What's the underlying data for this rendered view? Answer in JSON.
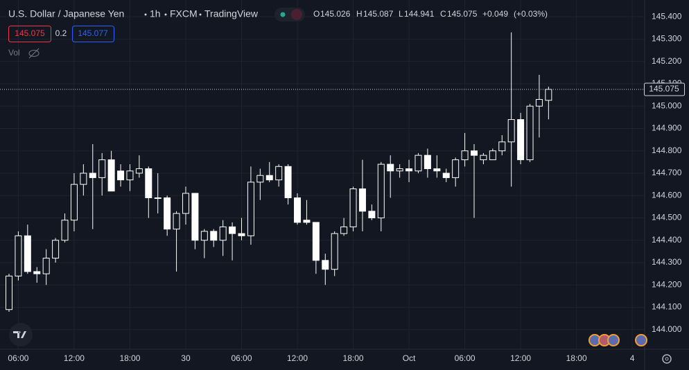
{
  "chart_data": {
    "type": "candlestick",
    "symbol": "U.S. Dollar / Japanese Yen",
    "interval": "1h",
    "source": "FXCM",
    "platform": "TradingView",
    "ohlc_header": {
      "open": 145.026,
      "high": 145.087,
      "low": 144.941,
      "close": 145.075,
      "change": "+0.049",
      "change_pct": "(+0.03%)"
    },
    "bid": 145.075,
    "spread": 0.2,
    "ask": 145.077,
    "volume_label": "Vol",
    "last_price": 145.075,
    "up_color": "#131722",
    "down_color": "#ffffff",
    "outline_color": "#ffffff",
    "bid_color": "#f23645",
    "ask_color": "#2962ff",
    "xticks_labels": [
      "06:00",
      "12:00",
      "18:00",
      "30",
      "06:00",
      "12:00",
      "18:00",
      "Oct",
      "06:00",
      "12:00",
      "18:00",
      "4"
    ],
    "ylim": [
      143.925,
      145.45
    ],
    "yticks": [
      {
        "value": 144.0,
        "label": "144.000"
      },
      {
        "value": 144.1,
        "label": "144.100"
      },
      {
        "value": 144.2,
        "label": "144.200"
      },
      {
        "value": 144.3,
        "label": "144.300"
      },
      {
        "value": 144.4,
        "label": "144.400"
      },
      {
        "value": 144.5,
        "label": "144.500"
      },
      {
        "value": 144.6,
        "label": "144.600"
      },
      {
        "value": 144.7,
        "label": "144.700"
      },
      {
        "value": 144.8,
        "label": "144.800"
      },
      {
        "value": 144.9,
        "label": "144.900"
      },
      {
        "value": 145.0,
        "label": "145.000"
      },
      {
        "value": 145.1,
        "label": "145.100"
      },
      {
        "value": 145.2,
        "label": "145.200"
      },
      {
        "value": 145.3,
        "label": "145.300"
      },
      {
        "value": 145.4,
        "label": "145.400"
      }
    ],
    "grid": true,
    "open": [
      144.09,
      144.24,
      144.42,
      144.26,
      144.25,
      144.32,
      144.4,
      144.49,
      144.65,
      144.7,
      144.68,
      144.76,
      144.71,
      144.67,
      144.7,
      144.72,
      144.59,
      144.59,
      144.45,
      144.52,
      144.61,
      144.4,
      144.44,
      144.4,
      144.46,
      144.43,
      144.42,
      144.66,
      144.69,
      144.67,
      144.73,
      144.59,
      144.49,
      144.48,
      144.31,
      144.27,
      144.43,
      144.46,
      144.63,
      144.53,
      144.5,
      144.74,
      144.71,
      144.72,
      144.71,
      144.78,
      144.72,
      144.7,
      144.68,
      144.76,
      144.8,
      144.76,
      144.76,
      144.8,
      144.84,
      144.94,
      144.76,
      145.0,
      145.026
    ],
    "high": [
      144.25,
      144.44,
      144.47,
      144.28,
      144.36,
      144.41,
      144.52,
      144.7,
      144.74,
      144.83,
      144.79,
      144.8,
      144.74,
      144.74,
      144.78,
      144.73,
      144.7,
      144.6,
      144.53,
      144.64,
      144.61,
      144.45,
      144.45,
      144.49,
      144.48,
      144.5,
      144.73,
      144.72,
      144.75,
      144.74,
      144.74,
      144.61,
      144.58,
      144.48,
      144.34,
      144.44,
      144.5,
      144.64,
      144.76,
      144.56,
      144.75,
      144.78,
      144.74,
      144.76,
      144.79,
      144.81,
      144.78,
      144.72,
      144.77,
      144.88,
      144.83,
      144.79,
      144.81,
      144.87,
      145.33,
      144.97,
      145.01,
      145.14,
      145.087
    ],
    "low": [
      144.08,
      144.22,
      144.25,
      144.21,
      144.2,
      144.3,
      144.39,
      144.44,
      144.6,
      144.45,
      144.6,
      144.62,
      144.64,
      144.62,
      144.68,
      144.5,
      144.52,
      144.42,
      144.26,
      144.47,
      144.36,
      144.32,
      144.37,
      144.33,
      144.31,
      144.4,
      144.38,
      144.58,
      144.66,
      144.64,
      144.56,
      144.47,
      144.47,
      144.25,
      144.2,
      144.24,
      144.42,
      144.44,
      144.44,
      144.49,
      144.44,
      144.59,
      144.68,
      144.66,
      144.7,
      144.68,
      144.68,
      144.66,
      144.64,
      144.73,
      144.5,
      144.74,
      144.76,
      144.78,
      144.64,
      144.74,
      144.75,
      144.86,
      144.941
    ],
    "close": [
      144.24,
      144.42,
      144.26,
      144.25,
      144.32,
      144.4,
      144.49,
      144.65,
      144.7,
      144.68,
      144.76,
      144.62,
      144.67,
      144.71,
      144.72,
      144.59,
      144.59,
      144.45,
      144.52,
      144.61,
      144.4,
      144.44,
      144.4,
      144.46,
      144.43,
      144.42,
      144.66,
      144.69,
      144.67,
      144.73,
      144.59,
      144.48,
      144.48,
      144.31,
      144.27,
      144.43,
      144.46,
      144.63,
      144.53,
      144.5,
      144.74,
      144.71,
      144.72,
      144.71,
      144.78,
      144.72,
      144.71,
      144.68,
      144.76,
      144.8,
      144.78,
      144.78,
      144.8,
      144.84,
      144.94,
      144.76,
      145.0,
      145.03,
      145.075
    ]
  }
}
